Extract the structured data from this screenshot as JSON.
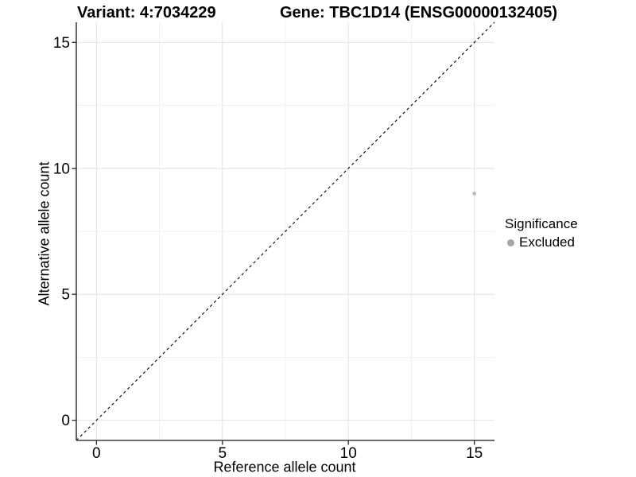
{
  "chart_data": {
    "type": "scatter",
    "title_left": "Variant: 4:7034229",
    "title_right": "Gene: TBC1D14 (ENSG00000132405)",
    "xlabel": "Reference allele count",
    "ylabel": "Alternative allele count",
    "xlim": [
      -0.8,
      15.8
    ],
    "ylim": [
      -0.8,
      15.8
    ],
    "x_ticks": [
      0,
      5,
      10,
      15
    ],
    "y_ticks": [
      0,
      5,
      10,
      15
    ],
    "x_minor_ticks": [
      2.5,
      7.5,
      12.5
    ],
    "y_minor_ticks": [
      2.5,
      7.5,
      12.5
    ],
    "grid": "major+minor",
    "series": [
      {
        "name": "Excluded",
        "color": "#b9b9b9",
        "points": [
          {
            "x": 15,
            "y": 9
          }
        ]
      }
    ],
    "reference_line": {
      "kind": "identity",
      "x1": -0.8,
      "y1": -0.8,
      "x2": 15.8,
      "y2": 15.8,
      "style": "dashed",
      "color": "#000000"
    },
    "legend": {
      "title": "Significance",
      "position": "right",
      "entries": [
        {
          "label": "Excluded",
          "color": "#a6a6a6"
        }
      ]
    },
    "colors": {
      "grid_major": "#e4e4e4",
      "grid_minor": "#f1f1f1",
      "axis_line": "#3f3f3f",
      "tick_mark": "#333333",
      "tick_text": "#000000"
    }
  }
}
